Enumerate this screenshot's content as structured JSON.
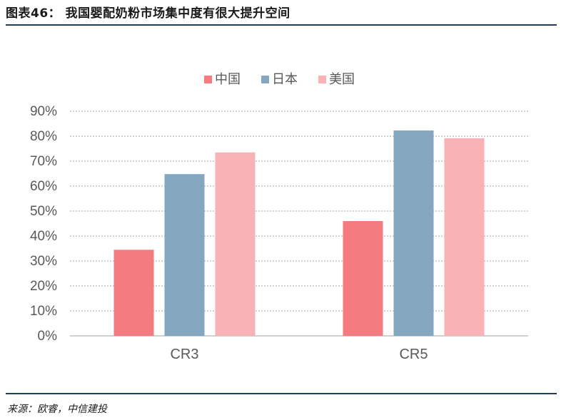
{
  "header": {
    "title": "图表46： 我国婴配奶粉市场集中度有很大提升空间"
  },
  "footer": {
    "source": "来源：欧睿，中信建投"
  },
  "chart_data": {
    "type": "bar",
    "categories": [
      "CR3",
      "CR5"
    ],
    "series": [
      {
        "name": "中国",
        "values": [
          34.5,
          46.0
        ],
        "color": "#f47b7f"
      },
      {
        "name": "日本",
        "values": [
          64.8,
          82.3
        ],
        "color": "#84a6bf"
      },
      {
        "name": "美国",
        "values": [
          73.5,
          79.2
        ],
        "color": "#f9b2b6"
      }
    ],
    "ylim": [
      0,
      90
    ],
    "yticks": [
      0,
      10,
      20,
      30,
      40,
      50,
      60,
      70,
      80,
      90
    ],
    "ytick_labels": [
      "0%",
      "10%",
      "20%",
      "30%",
      "40%",
      "50%",
      "60%",
      "70%",
      "80%",
      "90%"
    ],
    "legend_position": "top-center",
    "grid": "horizontal-dotted",
    "tick_color": "#595959",
    "grid_color": "#a6a6a6"
  }
}
